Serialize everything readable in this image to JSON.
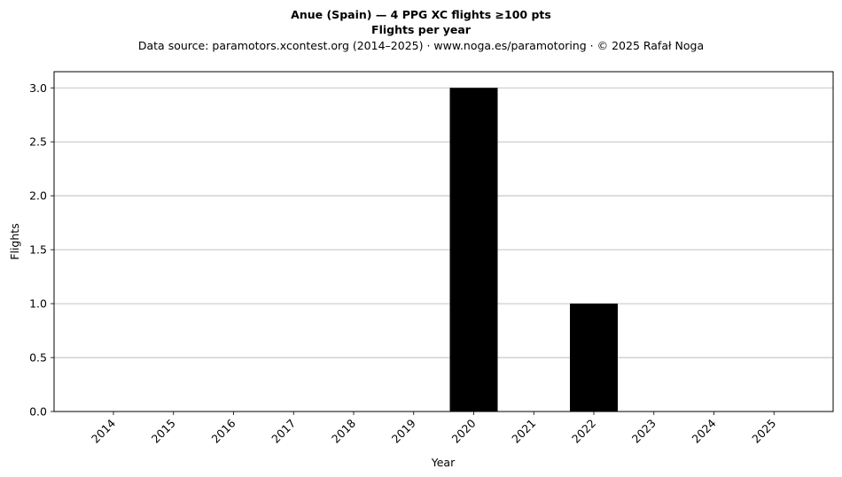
{
  "chart_data": {
    "type": "bar",
    "title": "Anue (Spain)  —  4 PPG XC flights ≥100 pts",
    "subtitle": "Flights per year",
    "source_note": "Data source: paramotors.xcontest.org (2014–2025)  ·  www.noga.es/paramotoring  ·  © 2025 Rafał Noga",
    "xlabel": "Year",
    "ylabel": "Flights",
    "categories": [
      "2014",
      "2015",
      "2016",
      "2017",
      "2018",
      "2019",
      "2020",
      "2021",
      "2022",
      "2023",
      "2024",
      "2025"
    ],
    "values": [
      0,
      0,
      0,
      0,
      0,
      0,
      3,
      0,
      1,
      0,
      0,
      0
    ],
    "ylim": [
      0,
      3.15
    ],
    "yticks": [
      "0.0",
      "0.5",
      "1.0",
      "1.5",
      "2.0",
      "2.5",
      "3.0"
    ],
    "ytick_values": [
      0,
      0.5,
      1.0,
      1.5,
      2.0,
      2.5,
      3.0
    ],
    "grid": "horizontal",
    "bar_color": "#000000",
    "grid_color": "#b0b0b0"
  }
}
